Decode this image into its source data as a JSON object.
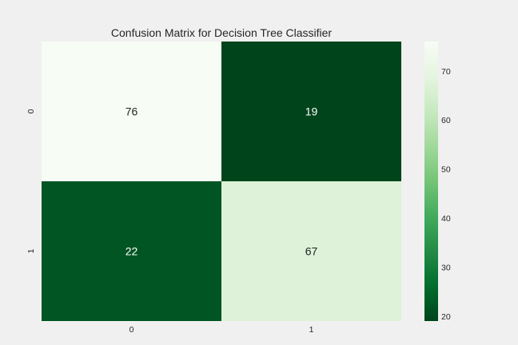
{
  "chart_data": {
    "type": "heatmap",
    "title": "Confusion Matrix for Decision Tree Classifier",
    "x_categories": [
      "0",
      "1"
    ],
    "y_categories": [
      "0",
      "1"
    ],
    "values": [
      [
        76,
        19
      ],
      [
        22,
        67
      ]
    ],
    "xlabel": "",
    "ylabel": "",
    "colormap": "Greens",
    "colorbar": {
      "vmin": 19,
      "vmax": 76,
      "ticks": [
        20,
        30,
        40,
        50,
        60,
        70
      ]
    },
    "grid": false
  }
}
